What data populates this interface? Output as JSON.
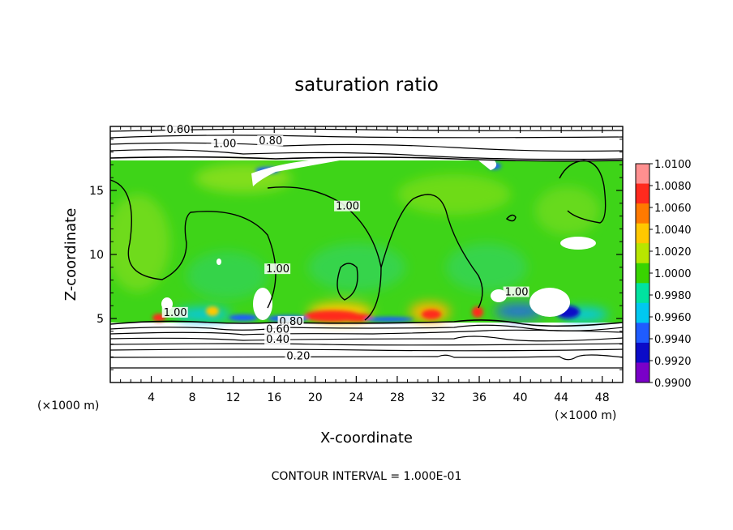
{
  "chart_data": {
    "type": "heatmap",
    "title": "saturation ratio",
    "xlabel": "X-coordinate",
    "ylabel": "Z-coordinate",
    "x_unit": "(×1000 m)",
    "z_unit": "(×1000 m)",
    "xlim": [
      0,
      50
    ],
    "ylim": [
      0,
      20
    ],
    "xticks": [
      4,
      8,
      12,
      16,
      20,
      24,
      28,
      32,
      36,
      40,
      44,
      48
    ],
    "yticks": [
      5,
      10,
      15
    ],
    "colorbar": {
      "ticks": [
        "1.0100",
        "1.0080",
        "1.0060",
        "1.0040",
        "1.0020",
        "1.0000",
        "0.9980",
        "0.9960",
        "0.9940",
        "0.9920",
        "0.9900"
      ],
      "colors": [
        "#ff9090",
        "#ff2a1e",
        "#ff7a00",
        "#ffc800",
        "#b8e600",
        "#39d400",
        "#00e3a0",
        "#00c8f0",
        "#1f5cff",
        "#0b0bc8",
        "#7a00c8"
      ]
    },
    "contour_labels": [
      {
        "text": "0.60",
        "x": 5.5,
        "y": 19.5
      },
      {
        "text": "1.00",
        "x": 10,
        "y": 18.4
      },
      {
        "text": "0.80",
        "x": 14.5,
        "y": 18.6
      },
      {
        "text": "1.00",
        "x": 22,
        "y": 13.5
      },
      {
        "text": "1.00",
        "x": 15.2,
        "y": 8.6
      },
      {
        "text": "1.00",
        "x": 5.2,
        "y": 5.2
      },
      {
        "text": "0.80",
        "x": 16.5,
        "y": 4.5
      },
      {
        "text": "0.60",
        "x": 15.2,
        "y": 3.9
      },
      {
        "text": "0.40",
        "x": 15.2,
        "y": 3.1
      },
      {
        "text": "0.20",
        "x": 17.2,
        "y": 1.8
      },
      {
        "text": "1.00",
        "x": 38.5,
        "y": 6.8
      }
    ],
    "contour_interval_text": "CONTOUR INTERVAL = 1.000E-01"
  }
}
